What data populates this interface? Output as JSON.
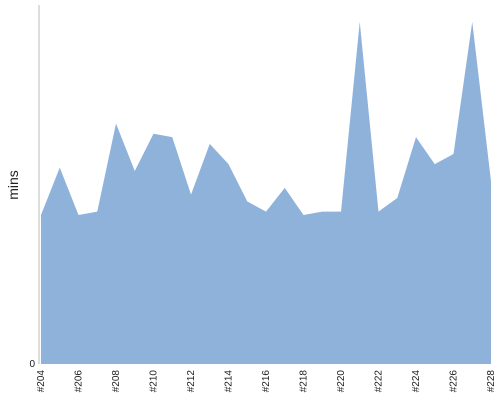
{
  "chart_data": {
    "type": "area",
    "title": "",
    "xlabel": "",
    "ylabel": "mins",
    "categories": [
      "#204",
      "#205",
      "#206",
      "#207",
      "#208",
      "#209",
      "#210",
      "#211",
      "#212",
      "#213",
      "#214",
      "#215",
      "#216",
      "#217",
      "#218",
      "#219",
      "#220",
      "#221",
      "#222",
      "#223",
      "#224",
      "#225",
      "#226",
      "#227",
      "#228"
    ],
    "x_tick_labels": [
      "#204",
      "#206",
      "#208",
      "#210",
      "#212",
      "#214",
      "#216",
      "#218",
      "#220",
      "#222",
      "#224",
      "#226",
      "#228"
    ],
    "y_tick_labels": [
      "0"
    ],
    "series": [
      {
        "values": [
          44,
          58,
          44,
          45,
          71,
          57,
          68,
          67,
          50,
          65,
          59,
          48,
          45,
          52,
          44,
          45,
          45,
          101,
          45,
          49,
          67,
          59,
          62,
          101,
          54
        ]
      }
    ],
    "ylim": [
      0,
      106
    ],
    "grid": false,
    "legend": "none",
    "colors": {
      "fill": "#8fb2db",
      "axis": "#bbbbbb"
    }
  }
}
